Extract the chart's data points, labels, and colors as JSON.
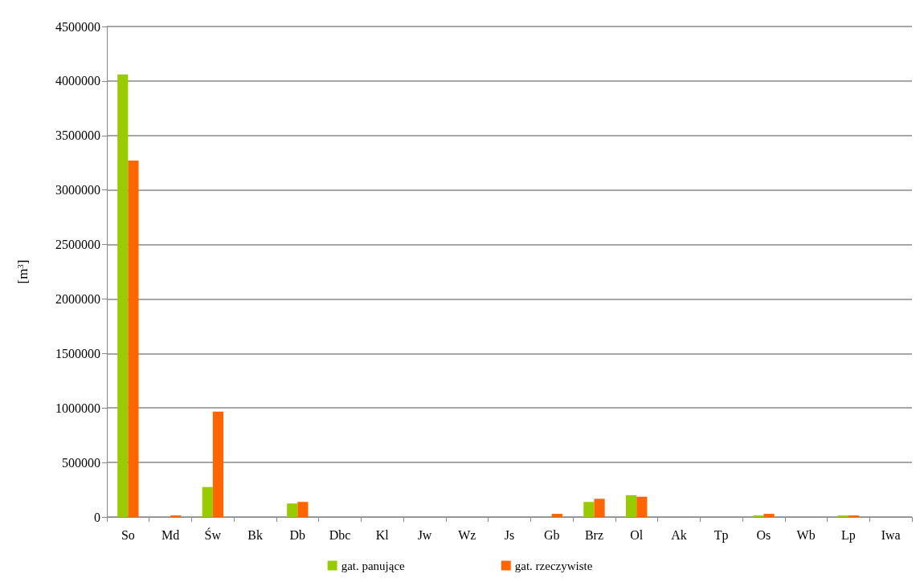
{
  "chart_data": {
    "type": "bar",
    "ylabel": "[m$^{3}$]",
    "categories": [
      "So",
      "Md",
      "Św",
      "Bk",
      "Db",
      "Dbc",
      "Kl",
      "Jw",
      "Wz",
      "Js",
      "Gb",
      "Brz",
      "Ol",
      "Ak",
      "Tp",
      "Os",
      "Wb",
      "Lp",
      "Iwa"
    ],
    "series": [
      {
        "name": "gat. panujące",
        "color": "#99cc00",
        "values": [
          4060000,
          0,
          275000,
          0,
          124000,
          0,
          0,
          0,
          0,
          0,
          0,
          138000,
          200000,
          0,
          0,
          14000,
          0,
          14000,
          0
        ]
      },
      {
        "name": "gat. rzeczywiste",
        "color": "#ff6600",
        "values": [
          3270000,
          14000,
          967000,
          0,
          138000,
          0,
          0,
          0,
          0,
          0,
          29000,
          167000,
          186000,
          0,
          0,
          29000,
          0,
          14000,
          0
        ]
      }
    ],
    "ylim": [
      0,
      4500000
    ],
    "yticks": [
      0,
      500000,
      1000000,
      1500000,
      2000000,
      2500000,
      3000000,
      3500000,
      4000000,
      4500000
    ],
    "grid": "y",
    "legend": "bottom"
  }
}
